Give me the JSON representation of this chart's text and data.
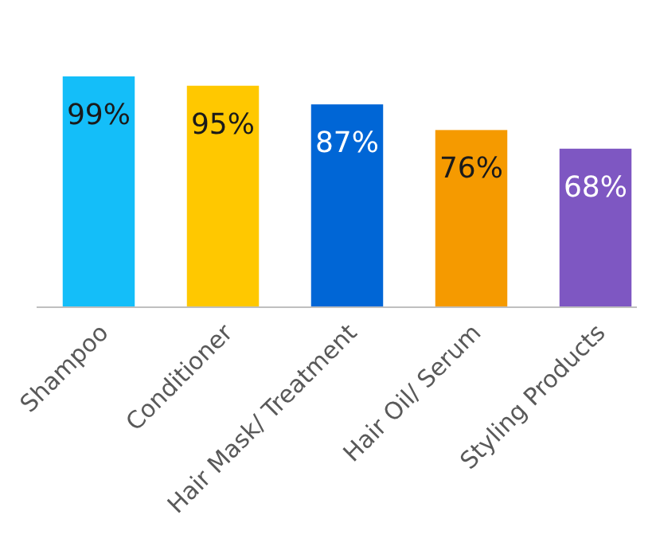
{
  "chart_data": {
    "type": "bar",
    "categories": [
      "Shampoo",
      "Conditioner",
      "Hair Mask/ Treatment",
      "Hair Oil/ Serum",
      "Styling Products"
    ],
    "values": [
      99,
      95,
      87,
      76,
      68
    ],
    "colors": [
      "#14bef9",
      "#ffc800",
      "#0066d6",
      "#f59a00",
      "#7e57c2"
    ],
    "value_labels": [
      "99%",
      "95%",
      "87%",
      "76%",
      "68%"
    ]
  }
}
